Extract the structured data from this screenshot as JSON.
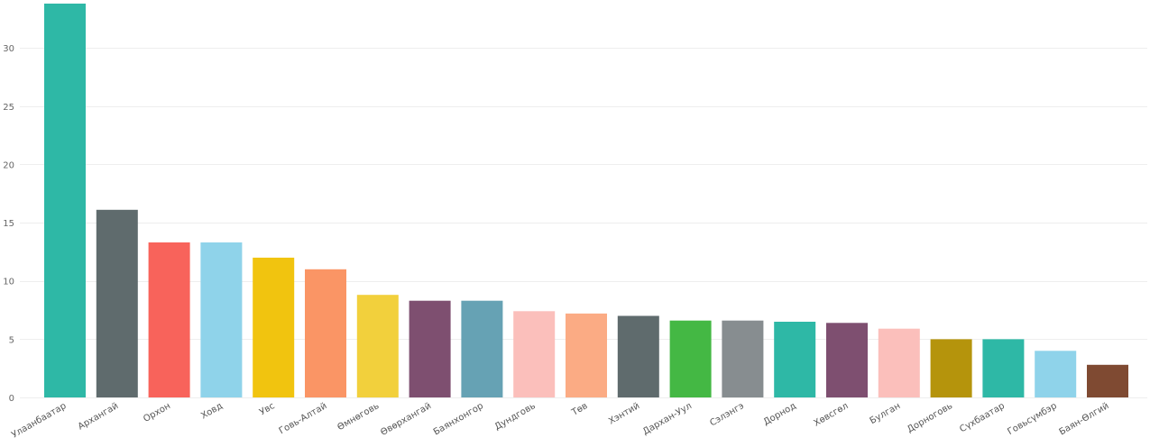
{
  "chart_data": {
    "type": "bar",
    "title": "",
    "xlabel": "",
    "ylabel": "",
    "ylim": [
      0,
      33.8
    ],
    "yticks": [
      0,
      5,
      10,
      15,
      20,
      25,
      30
    ],
    "grid": true,
    "categories": [
      "Улаанбаатар",
      "Архангай",
      "Орхон",
      "Ховд",
      "Увс",
      "Говь-Алтай",
      "Өмнөговь",
      "Өвөрхангай",
      "Баянхонгор",
      "Дундговь",
      "Төв",
      "Хэнтий",
      "Дархан-Уул",
      "Сэлэнгэ",
      "Дорнод",
      "Хөвсгөл",
      "Булган",
      "Дорноговь",
      "Сүхбаатар",
      "Говьсүмбэр",
      "Баян-Өлгий"
    ],
    "values": [
      33.8,
      16.1,
      13.3,
      13.3,
      12.0,
      11.0,
      8.8,
      8.3,
      8.3,
      7.4,
      7.2,
      7.0,
      6.6,
      6.6,
      6.5,
      6.4,
      5.9,
      5.0,
      5.0,
      4.0,
      2.8
    ],
    "colors": [
      "#2eb8a6",
      "#5f6b6d",
      "#f8635b",
      "#8fd3ea",
      "#f1c40f",
      "#fa9565",
      "#f2d03c",
      "#7e4f70",
      "#66a2b4",
      "#fbbfbb",
      "#fbab84",
      "#5f6b6d",
      "#44b844",
      "#878d90",
      "#2eb8a6",
      "#7e4f70",
      "#fbbfbb",
      "#b5940c",
      "#2eb8a6",
      "#8fd3ea",
      "#7f4a32"
    ]
  }
}
